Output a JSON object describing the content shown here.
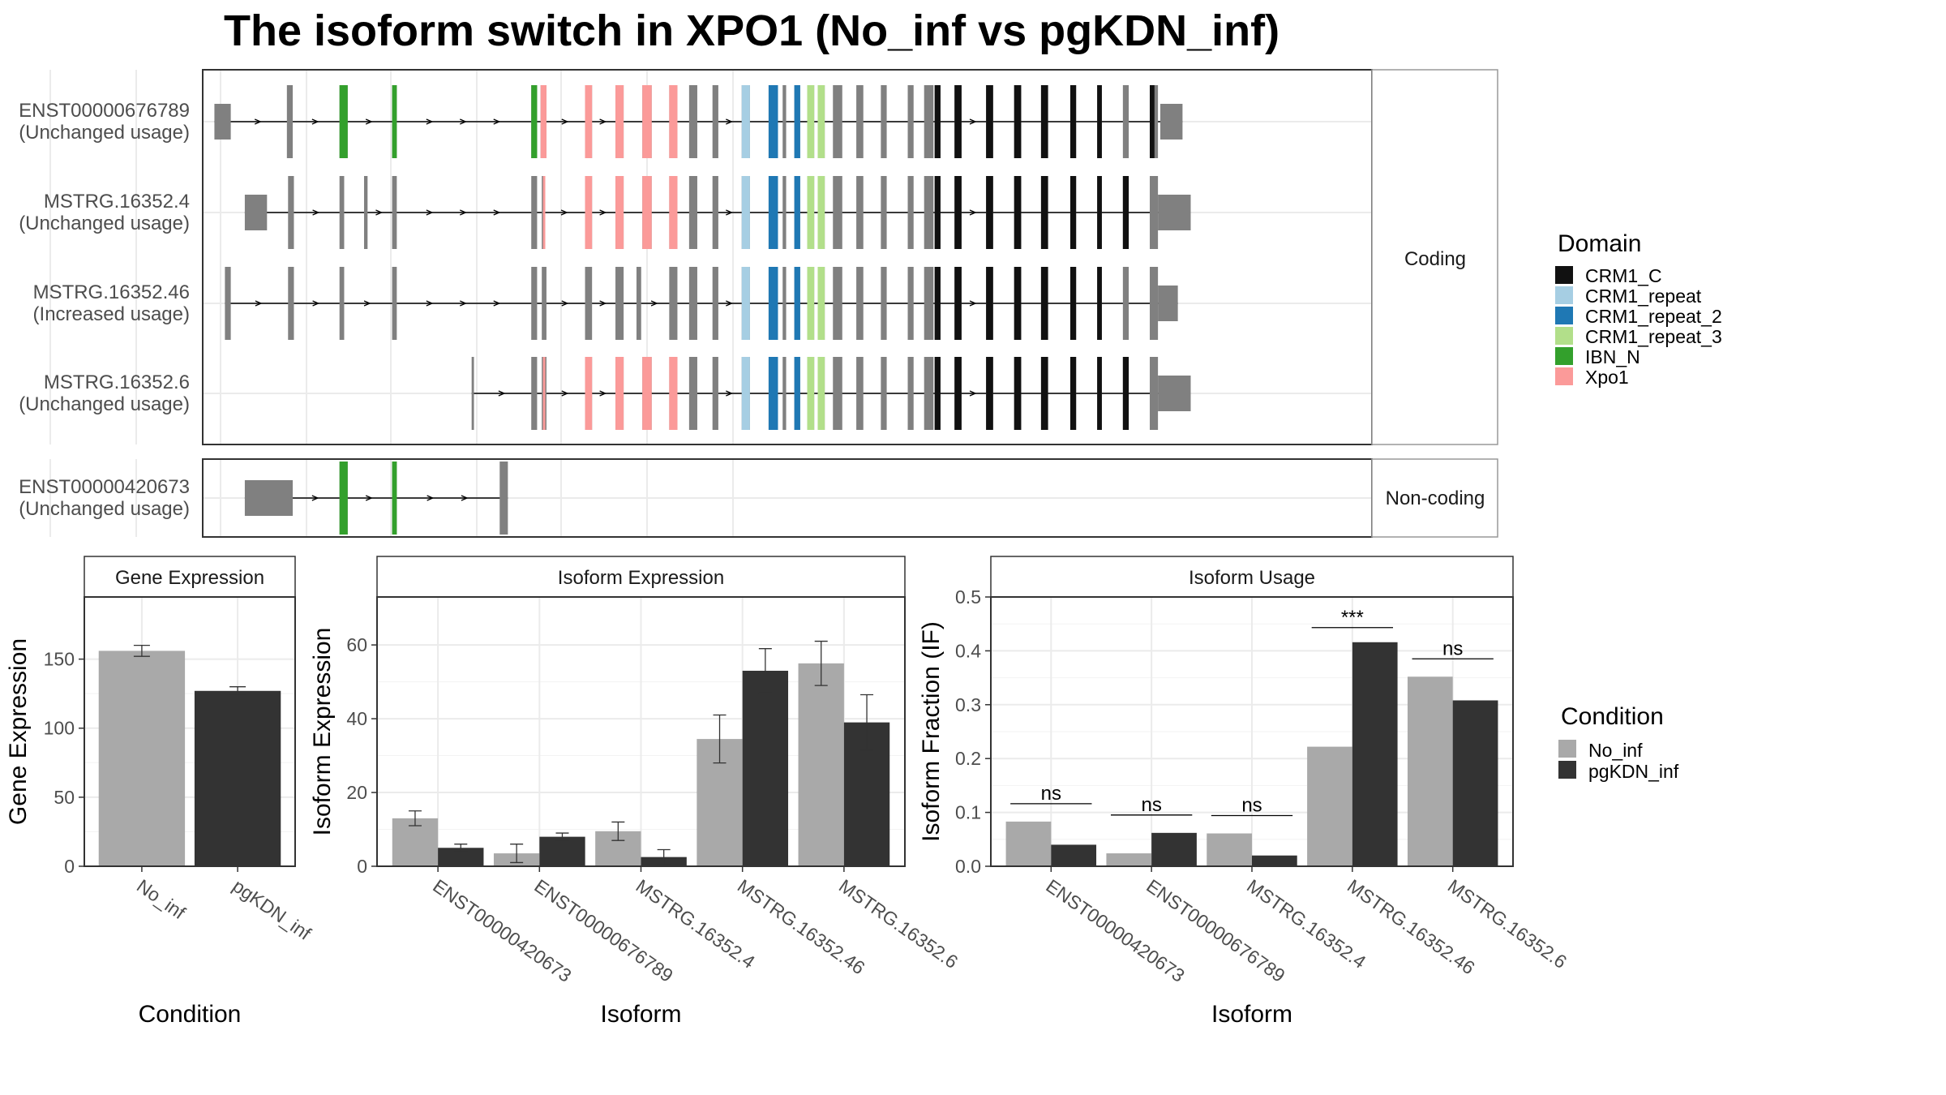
{
  "title": "The isoform switch in XPO1 (No_inf vs pgKDN_inf)",
  "colors": {
    "no_inf": "#A9A9A9",
    "pgkdn_inf": "#333333",
    "exon": "#808080",
    "domains": {
      "CRM1_C": "#111111",
      "CRM1_repeat": "#A6CEE3",
      "CRM1_repeat_2": "#1F78B4",
      "CRM1_repeat_3": "#B2DF8A",
      "IBN_N": "#33A02C",
      "Xpo1": "#FB9A99"
    }
  },
  "structure": {
    "facet_coding": "Coding",
    "facet_noncoding": "Non-coding",
    "isoforms": [
      {
        "id": "ENST00000676789",
        "usage": "(Unchanged usage)",
        "group": "coding",
        "row": 0,
        "exons": [
          [
            10,
            24
          ],
          [
            72,
            77
          ],
          [
            117,
            124
          ],
          [
            162,
            166
          ],
          [
            281,
            286
          ],
          [
            289,
            294
          ],
          [
            327,
            333
          ],
          [
            353,
            360
          ],
          [
            376,
            384
          ],
          [
            399,
            406
          ],
          [
            416,
            423
          ],
          [
            436,
            441
          ],
          [
            461,
            468
          ],
          [
            484,
            492
          ],
          [
            496,
            499
          ],
          [
            506,
            511
          ],
          [
            517,
            523
          ],
          [
            526,
            532
          ],
          [
            539,
            547
          ],
          [
            559,
            565
          ],
          [
            580,
            585
          ],
          [
            603,
            608
          ],
          [
            617,
            625
          ],
          [
            626,
            631
          ],
          [
            643,
            649
          ],
          [
            670,
            676
          ],
          [
            694,
            700
          ],
          [
            717,
            723
          ],
          [
            742,
            747
          ],
          [
            765,
            769
          ],
          [
            787,
            792
          ],
          [
            810,
            817
          ],
          [
            819,
            838
          ]
        ],
        "domains": [
          [
            "IBN_N",
            117,
            124
          ],
          [
            "IBN_N",
            162,
            166
          ],
          [
            "IBN_N",
            281,
            286
          ],
          [
            "Xpo1",
            289,
            294
          ],
          [
            "Xpo1",
            327,
            333
          ],
          [
            "Xpo1",
            353,
            360
          ],
          [
            "Xpo1",
            376,
            384
          ],
          [
            "Xpo1",
            399,
            406
          ],
          [
            "CRM1_repeat",
            461,
            468
          ],
          [
            "CRM1_repeat_2",
            484,
            492
          ],
          [
            "CRM1_repeat_2",
            506,
            511
          ],
          [
            "CRM1_repeat_3",
            517,
            523
          ],
          [
            "CRM1_repeat_3",
            526,
            532
          ],
          [
            "CRM1_C",
            626,
            631
          ],
          [
            "CRM1_C",
            643,
            649
          ],
          [
            "CRM1_C",
            670,
            676
          ],
          [
            "CRM1_C",
            694,
            700
          ],
          [
            "CRM1_C",
            717,
            723
          ],
          [
            "CRM1_C",
            742,
            747
          ],
          [
            "CRM1_C",
            765,
            769
          ],
          [
            "CRM1_C",
            810,
            814
          ]
        ]
      },
      {
        "id": "MSTRG.16352.4",
        "usage": "(Unchanged usage)",
        "group": "coding",
        "row": 1,
        "exons": [
          [
            36,
            55
          ],
          [
            73,
            78
          ],
          [
            117,
            121
          ],
          [
            138,
            141
          ],
          [
            162,
            166
          ],
          [
            281,
            286
          ],
          [
            290,
            293
          ],
          [
            327,
            333
          ],
          [
            353,
            360
          ],
          [
            376,
            384
          ],
          [
            399,
            406
          ],
          [
            416,
            423
          ],
          [
            436,
            441
          ],
          [
            461,
            468
          ],
          [
            484,
            492
          ],
          [
            496,
            499
          ],
          [
            506,
            511
          ],
          [
            517,
            523
          ],
          [
            526,
            532
          ],
          [
            539,
            547
          ],
          [
            559,
            565
          ],
          [
            580,
            585
          ],
          [
            603,
            608
          ],
          [
            617,
            625
          ],
          [
            626,
            631
          ],
          [
            643,
            649
          ],
          [
            670,
            676
          ],
          [
            694,
            700
          ],
          [
            717,
            723
          ],
          [
            742,
            747
          ],
          [
            765,
            769
          ],
          [
            787,
            792
          ],
          [
            810,
            817
          ],
          [
            817,
            845
          ]
        ],
        "domains": [
          [
            "Xpo1",
            291,
            293
          ],
          [
            "Xpo1",
            327,
            333
          ],
          [
            "Xpo1",
            353,
            360
          ],
          [
            "Xpo1",
            376,
            384
          ],
          [
            "Xpo1",
            399,
            406
          ],
          [
            "CRM1_repeat",
            461,
            468
          ],
          [
            "CRM1_repeat_2",
            484,
            492
          ],
          [
            "CRM1_repeat_2",
            506,
            511
          ],
          [
            "CRM1_repeat_3",
            517,
            523
          ],
          [
            "CRM1_repeat_3",
            526,
            532
          ],
          [
            "CRM1_C",
            626,
            631
          ],
          [
            "CRM1_C",
            643,
            649
          ],
          [
            "CRM1_C",
            670,
            676
          ],
          [
            "CRM1_C",
            694,
            700
          ],
          [
            "CRM1_C",
            717,
            723
          ],
          [
            "CRM1_C",
            742,
            747
          ],
          [
            "CRM1_C",
            765,
            769
          ],
          [
            "CRM1_C",
            787,
            792
          ]
        ]
      },
      {
        "id": "MSTRG.16352.46",
        "usage": "(Increased usage)",
        "group": "coding",
        "row": 2,
        "exons": [
          [
            19,
            24
          ],
          [
            73,
            78
          ],
          [
            117,
            121
          ],
          [
            162,
            166
          ],
          [
            281,
            286
          ],
          [
            290,
            294
          ],
          [
            327,
            333
          ],
          [
            353,
            360
          ],
          [
            371,
            375
          ],
          [
            399,
            406
          ],
          [
            416,
            423
          ],
          [
            436,
            441
          ],
          [
            461,
            468
          ],
          [
            484,
            492
          ],
          [
            496,
            499
          ],
          [
            506,
            511
          ],
          [
            517,
            523
          ],
          [
            526,
            532
          ],
          [
            539,
            547
          ],
          [
            559,
            565
          ],
          [
            580,
            585
          ],
          [
            603,
            608
          ],
          [
            617,
            625
          ],
          [
            626,
            631
          ],
          [
            643,
            649
          ],
          [
            670,
            676
          ],
          [
            694,
            700
          ],
          [
            717,
            723
          ],
          [
            742,
            747
          ],
          [
            765,
            769
          ],
          [
            787,
            792
          ],
          [
            810,
            817
          ],
          [
            817,
            834
          ]
        ],
        "domains": [
          [
            "CRM1_repeat",
            461,
            468
          ],
          [
            "CRM1_repeat_2",
            484,
            492
          ],
          [
            "CRM1_repeat_2",
            506,
            511
          ],
          [
            "CRM1_repeat_3",
            517,
            523
          ],
          [
            "CRM1_repeat_3",
            526,
            532
          ],
          [
            "CRM1_C",
            626,
            631
          ],
          [
            "CRM1_C",
            643,
            649
          ],
          [
            "CRM1_C",
            670,
            676
          ],
          [
            "CRM1_C",
            694,
            700
          ],
          [
            "CRM1_C",
            717,
            723
          ],
          [
            "CRM1_C",
            742,
            747
          ],
          [
            "CRM1_C",
            765,
            769
          ]
        ]
      },
      {
        "id": "MSTRG.16352.6",
        "usage": "(Unchanged usage)",
        "group": "coding",
        "row": 3,
        "exons": [
          [
            230,
            232
          ],
          [
            281,
            286
          ],
          [
            290,
            294
          ],
          [
            327,
            333
          ],
          [
            353,
            360
          ],
          [
            376,
            384
          ],
          [
            399,
            406
          ],
          [
            416,
            423
          ],
          [
            436,
            441
          ],
          [
            461,
            468
          ],
          [
            484,
            492
          ],
          [
            496,
            499
          ],
          [
            506,
            511
          ],
          [
            517,
            523
          ],
          [
            526,
            532
          ],
          [
            539,
            547
          ],
          [
            559,
            565
          ],
          [
            580,
            585
          ],
          [
            603,
            608
          ],
          [
            617,
            625
          ],
          [
            626,
            631
          ],
          [
            643,
            649
          ],
          [
            670,
            676
          ],
          [
            694,
            700
          ],
          [
            717,
            723
          ],
          [
            742,
            747
          ],
          [
            765,
            769
          ],
          [
            787,
            792
          ],
          [
            810,
            817
          ],
          [
            817,
            845
          ]
        ],
        "domains": [
          [
            "Xpo1",
            291,
            293
          ],
          [
            "Xpo1",
            327,
            333
          ],
          [
            "Xpo1",
            353,
            360
          ],
          [
            "Xpo1",
            376,
            384
          ],
          [
            "Xpo1",
            399,
            406
          ],
          [
            "CRM1_repeat",
            461,
            468
          ],
          [
            "CRM1_repeat_2",
            484,
            492
          ],
          [
            "CRM1_repeat_2",
            506,
            511
          ],
          [
            "CRM1_repeat_3",
            517,
            523
          ],
          [
            "CRM1_repeat_3",
            526,
            532
          ],
          [
            "CRM1_C",
            626,
            631
          ],
          [
            "CRM1_C",
            643,
            649
          ],
          [
            "CRM1_C",
            670,
            676
          ],
          [
            "CRM1_C",
            694,
            700
          ],
          [
            "CRM1_C",
            717,
            723
          ],
          [
            "CRM1_C",
            742,
            747
          ],
          [
            "CRM1_C",
            765,
            769
          ],
          [
            "CRM1_C",
            787,
            792
          ]
        ]
      },
      {
        "id": "ENST00000420673",
        "usage": "(Unchanged usage)",
        "group": "noncoding",
        "row": 0,
        "exons": [
          [
            36,
            77
          ],
          [
            117,
            124
          ],
          [
            162,
            166
          ],
          [
            254,
            261
          ]
        ],
        "domains": [
          [
            "IBN_N",
            117,
            124
          ],
          [
            "IBN_N",
            162,
            166
          ]
        ]
      }
    ]
  },
  "legend_domain": {
    "title": "Domain",
    "items": [
      "CRM1_C",
      "CRM1_repeat",
      "CRM1_repeat_2",
      "CRM1_repeat_3",
      "IBN_N",
      "Xpo1"
    ]
  },
  "legend_condition": {
    "title": "Condition",
    "items": [
      "No_inf",
      "pgKDN_inf"
    ]
  },
  "chart_data": [
    {
      "type": "bar",
      "panel_title": "Gene Expression",
      "xlabel": "Condition",
      "ylabel": "Gene Expression",
      "ylim": [
        0,
        195
      ],
      "yticks": [
        0,
        50,
        100,
        150
      ],
      "categories": [
        "No_inf",
        "pgKDN_inf"
      ],
      "values": [
        156,
        127
      ],
      "errors": [
        4,
        3
      ]
    },
    {
      "type": "bar",
      "panel_title": "Isoform Expression",
      "xlabel": "Isoform",
      "ylabel": "Isoform Expression",
      "ylim": [
        0,
        73
      ],
      "yticks": [
        0,
        20,
        40,
        60
      ],
      "categories": [
        "ENST00000420673",
        "ENST00000676789",
        "MSTRG.16352.4",
        "MSTRG.16352.46",
        "MSTRG.16352.6"
      ],
      "series": [
        {
          "name": "No_inf",
          "values": [
            13,
            3.5,
            9.5,
            34.5,
            55
          ],
          "errors": [
            2,
            2.5,
            2.5,
            6.5,
            6
          ]
        },
        {
          "name": "pgKDN_inf",
          "values": [
            5,
            8,
            2.5,
            53,
            39
          ],
          "errors": [
            1,
            1,
            2,
            6,
            7.5
          ]
        }
      ]
    },
    {
      "type": "bar",
      "panel_title": "Isoform Usage",
      "xlabel": "Isoform",
      "ylabel": "Isoform Fraction (IF)",
      "ylim": [
        0,
        0.5
      ],
      "yticks": [
        0.0,
        0.1,
        0.2,
        0.3,
        0.4,
        0.5
      ],
      "categories": [
        "ENST00000420673",
        "ENST00000676789",
        "MSTRG.16352.4",
        "MSTRG.16352.46",
        "MSTRG.16352.6"
      ],
      "series": [
        {
          "name": "No_inf",
          "values": [
            0.083,
            0.024,
            0.061,
            0.222,
            0.352
          ]
        },
        {
          "name": "pgKDN_inf",
          "values": [
            0.04,
            0.062,
            0.02,
            0.416,
            0.308
          ]
        }
      ],
      "annotations": [
        "ns",
        "ns",
        "ns",
        "***",
        "ns"
      ]
    }
  ]
}
